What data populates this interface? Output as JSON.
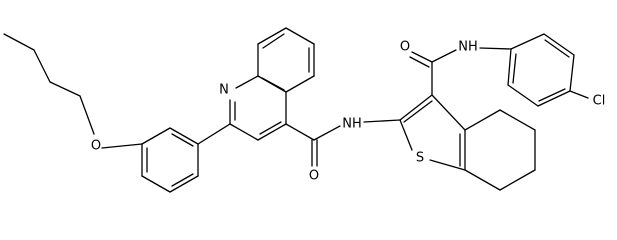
{
  "atoms": [
    "O",
    "N",
    "O",
    "NH",
    "S",
    "O",
    "NH",
    "Cl"
  ]
}
